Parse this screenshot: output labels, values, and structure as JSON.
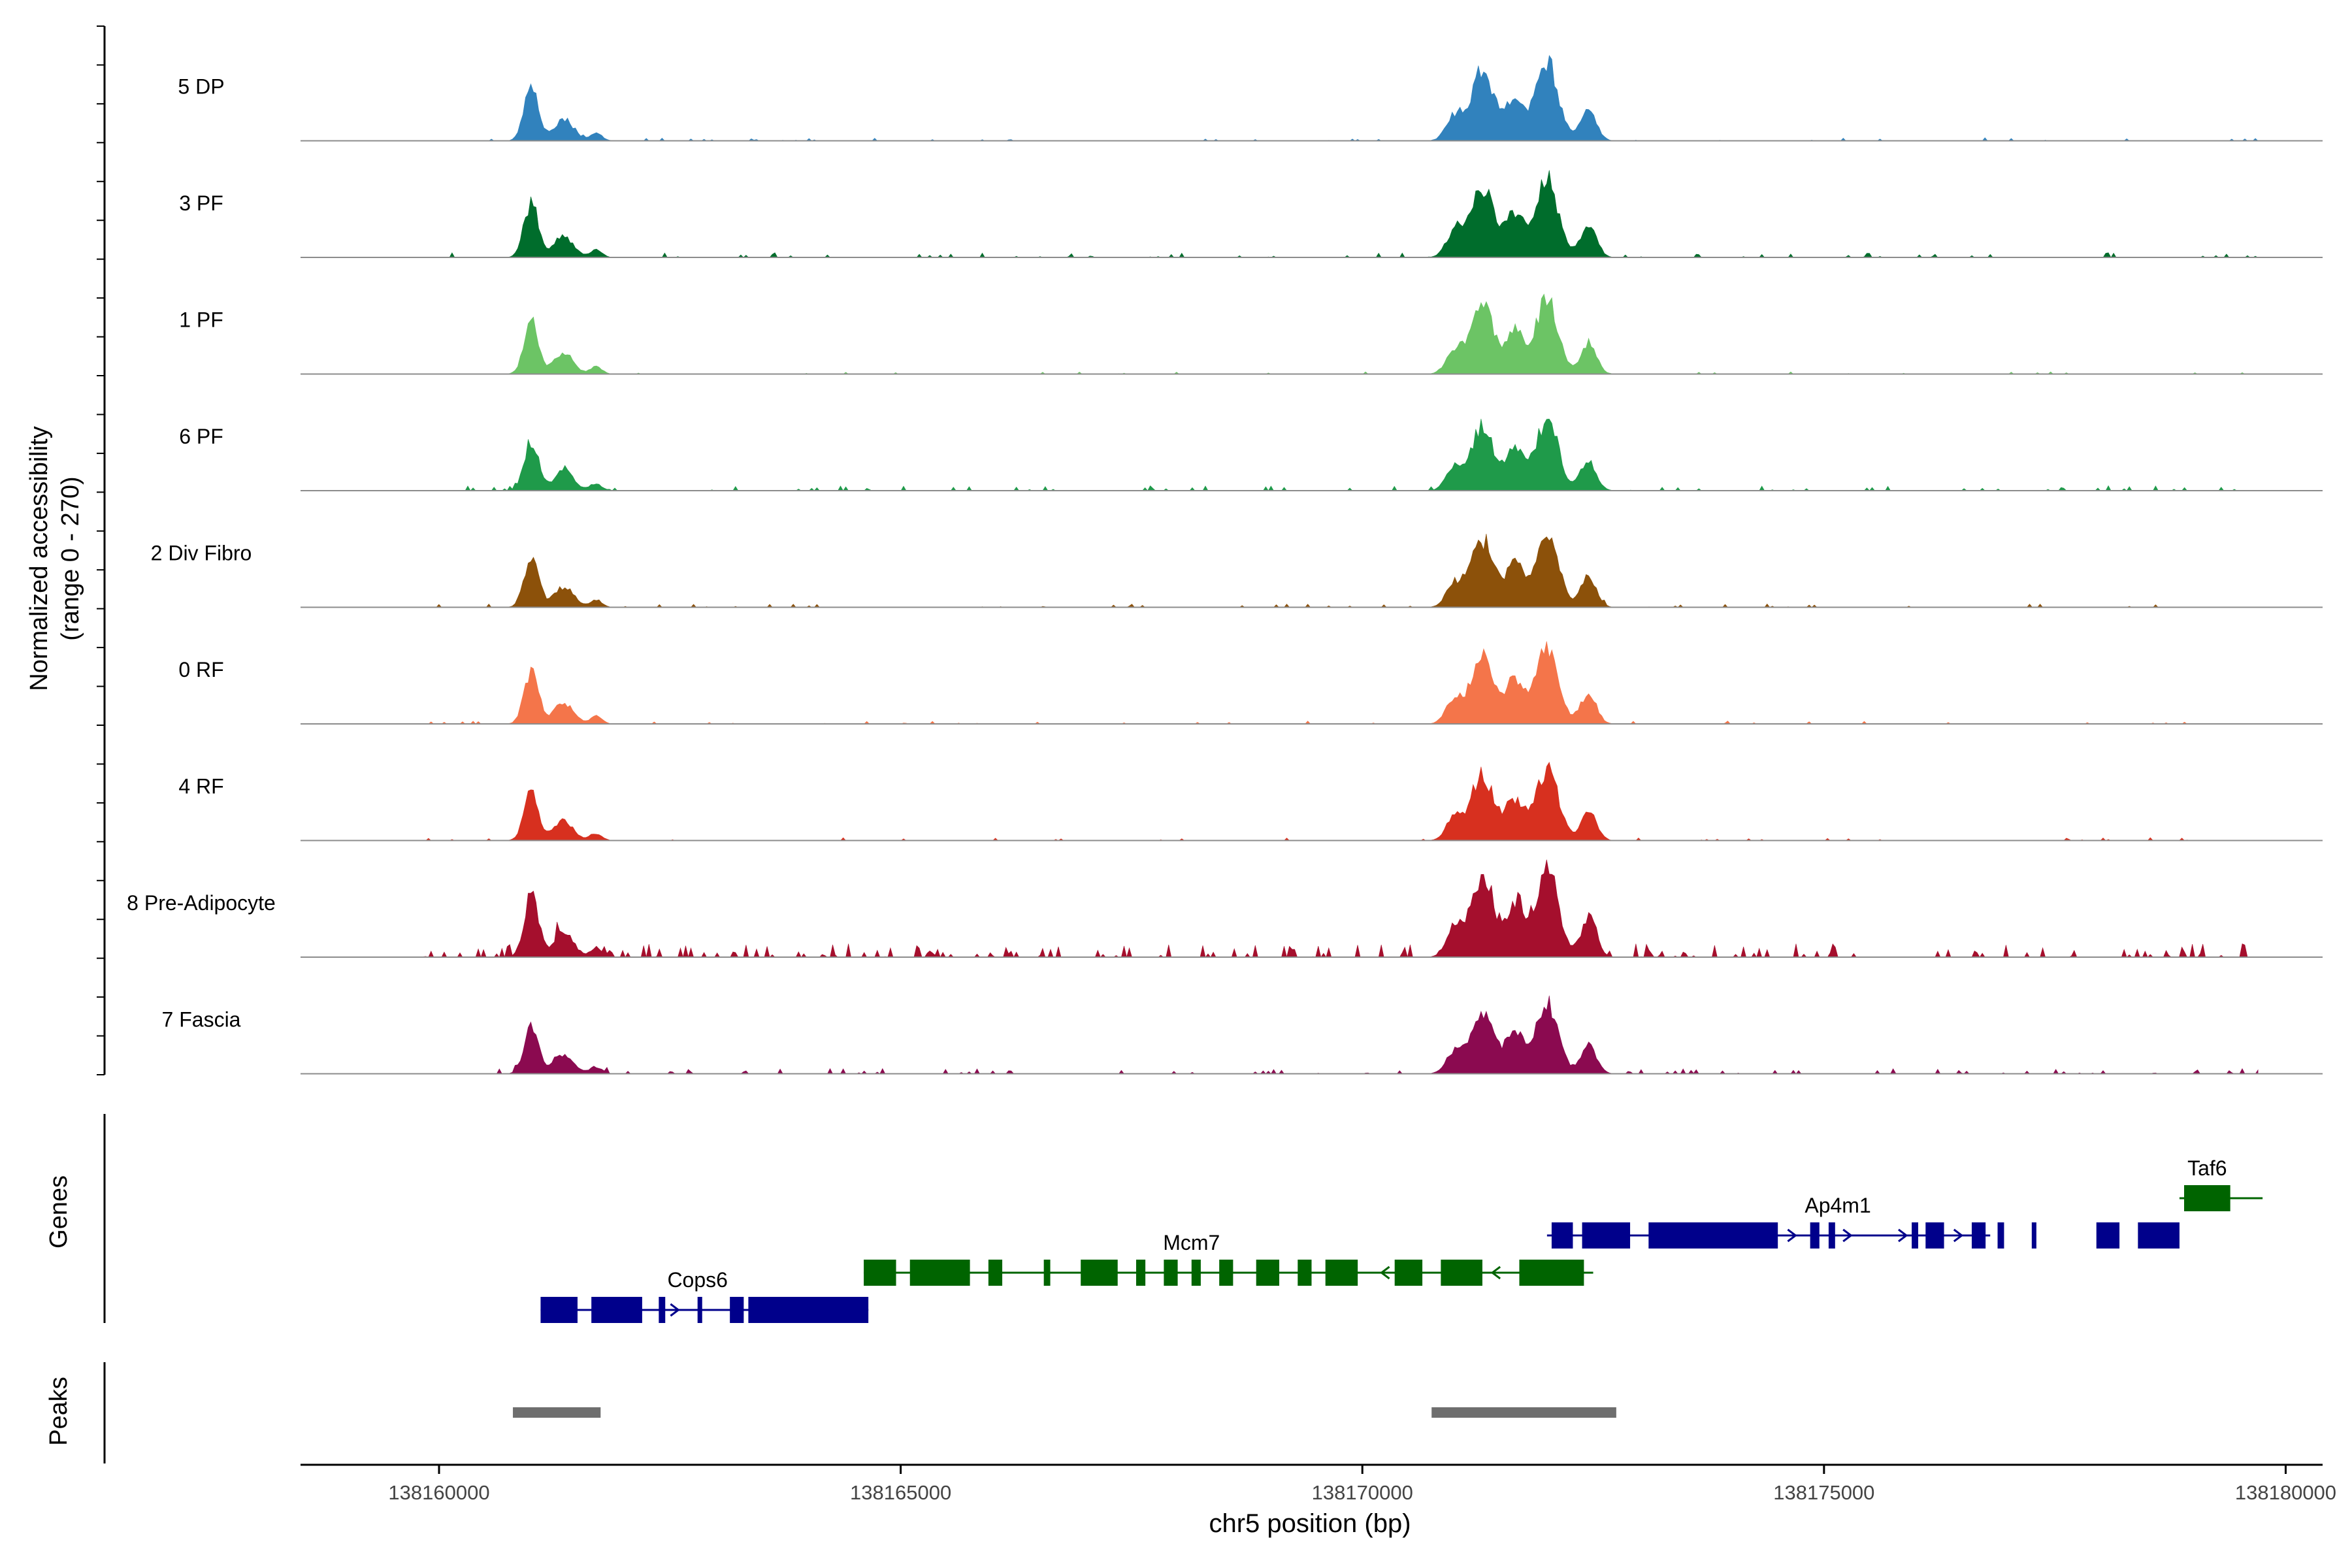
{
  "chart_data": {
    "type": "area",
    "chrom": "chr5",
    "xlabel": "chr5 position (bp)",
    "xlim": [
      138158500,
      138180400
    ],
    "x_ticks": [
      138160000,
      138165000,
      138170000,
      138175000,
      138180000
    ],
    "x_tick_labels": [
      "138160000",
      "138165000",
      "138170000",
      "138175000",
      "138180000"
    ],
    "ylabel": "Normalized accessibility",
    "ylabel_range": "(range 0 - 270)",
    "ylim": [
      0,
      270
    ],
    "tracks": [
      {
        "name": "5 DP",
        "color": "#3182bd",
        "scale": 1.0,
        "noise": 0.8
      },
      {
        "name": "3 PF",
        "color": "#006d2c",
        "scale": 1.0,
        "noise": 1.2
      },
      {
        "name": "1 PF",
        "color": "#6cc465",
        "scale": 0.96,
        "noise": 0.6
      },
      {
        "name": "6 PF",
        "color": "#1f9a4a",
        "scale": 0.92,
        "noise": 1.4
      },
      {
        "name": "2 Div Fibro",
        "color": "#8c510a",
        "scale": 0.96,
        "noise": 0.9
      },
      {
        "name": "0 RF",
        "color": "#f4754a",
        "scale": 0.97,
        "noise": 0.8
      },
      {
        "name": "4 RF",
        "color": "#d7301f",
        "scale": 0.92,
        "noise": 0.8
      },
      {
        "name": "8 Pre-Adipocyte",
        "color": "#a50f2d",
        "scale": 1.15,
        "noise": 3.0
      },
      {
        "name": "7 Fascia",
        "color": "#8b0a50",
        "scale": 0.9,
        "noise": 1.5
      }
    ],
    "peaks_signal": [
      {
        "center": 138161000,
        "width": 110,
        "height": 0.55
      },
      {
        "center": 138161350,
        "width": 150,
        "height": 0.22
      },
      {
        "center": 138161700,
        "width": 90,
        "height": 0.08
      },
      {
        "center": 138171000,
        "width": 130,
        "height": 0.25
      },
      {
        "center": 138171300,
        "width": 170,
        "height": 0.72
      },
      {
        "center": 138171650,
        "width": 140,
        "height": 0.45
      },
      {
        "center": 138172000,
        "width": 170,
        "height": 0.8
      },
      {
        "center": 138172450,
        "width": 120,
        "height": 0.33
      }
    ],
    "genes_label": "Genes",
    "genes": [
      {
        "name": "Cops6",
        "color": "#00008b",
        "strand": "+",
        "start": 138161100,
        "end": 138164650,
        "label_pos": 138162800,
        "exons": [
          [
            138161100,
            138161500
          ],
          [
            138161650,
            138162200
          ],
          [
            138162380,
            138162450
          ],
          [
            138162800,
            138162850
          ],
          [
            138163150,
            138163300
          ],
          [
            138163350,
            138164650
          ]
        ]
      },
      {
        "name": "Mcm7",
        "color": "#006400",
        "strand": "-",
        "start": 138164600,
        "end": 138172500,
        "label_pos": 138168150,
        "exons": [
          [
            138164600,
            138164950
          ],
          [
            138165100,
            138165750
          ],
          [
            138165950,
            138166100
          ],
          [
            138166550,
            138166620
          ],
          [
            138166950,
            138167350
          ],
          [
            138167550,
            138167650
          ],
          [
            138167850,
            138168000
          ],
          [
            138168150,
            138168250
          ],
          [
            138168450,
            138168600
          ],
          [
            138168850,
            138169100
          ],
          [
            138169300,
            138169450
          ],
          [
            138169600,
            138169950
          ],
          [
            138170350,
            138170650
          ],
          [
            138170850,
            138171300
          ],
          [
            138171700,
            138172400
          ]
        ]
      },
      {
        "name": "Ap4m1",
        "color": "#00008b",
        "strand": "+",
        "start": 138172000,
        "end": 138176800,
        "label_pos": 138175150,
        "exons": [
          [
            138172050,
            138172280
          ],
          [
            138172380,
            138172900
          ],
          [
            138173100,
            138174500
          ],
          [
            138174850,
            138174950
          ],
          [
            138175050,
            138175120
          ],
          [
            138175950,
            138176020
          ],
          [
            138176100,
            138176300
          ],
          [
            138176600,
            138176750
          ],
          [
            138176880,
            138176950
          ],
          [
            138177250,
            138177300
          ],
          [
            138177950,
            138178200
          ],
          [
            138178400,
            138178850
          ]
        ]
      },
      {
        "name": "Taf6",
        "color": "#006400",
        "strand": "-",
        "start": 138178850,
        "end": 138179750,
        "label_pos": 138179150,
        "exons": [
          [
            138178900,
            138179400
          ]
        ]
      }
    ],
    "peaks_label": "Peaks",
    "peaks": [
      {
        "start": 138160800,
        "end": 138161750
      },
      {
        "start": 138170750,
        "end": 138172750
      }
    ]
  }
}
